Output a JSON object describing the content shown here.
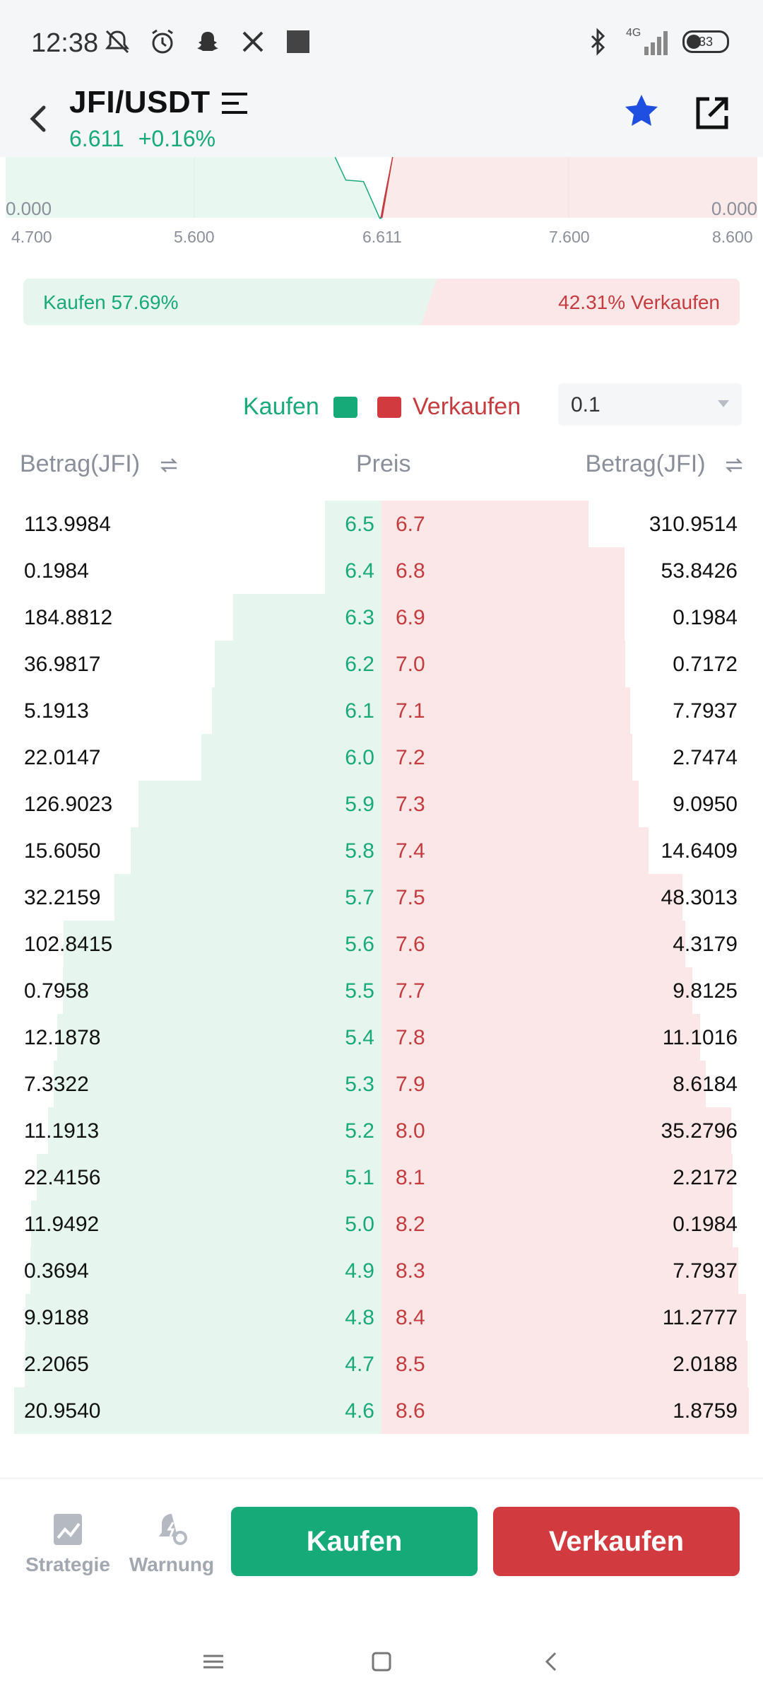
{
  "status": {
    "time": "12:38",
    "network": "4G",
    "battery": "33"
  },
  "header": {
    "pair": "JFI/USDT",
    "price": "6.611",
    "change": "+0.16%"
  },
  "depth": {
    "zero_left": "0.000",
    "zero_right": "0.000",
    "ticks": [
      "4.700",
      "5.600",
      "6.611",
      "7.600",
      "8.600"
    ]
  },
  "ratio": {
    "buy_label": "Kaufen 57.69%",
    "sell_label": "42.31% Verkaufen",
    "buy_fraction": 0.5769
  },
  "legend": {
    "buy": "Kaufen",
    "sell": "Verkaufen",
    "buy_color": "#1aa97a",
    "sell_color": "#c53c40",
    "precision": "0.1"
  },
  "columns": {
    "buy_amount": "Betrag(JFI)",
    "price": "Preis",
    "sell_amount": "Betrag(JFI)"
  },
  "orderbook": {
    "rows": [
      {
        "buy_amt": "113.9984",
        "buy_price": "6.5",
        "sell_price": "6.7",
        "sell_amt": "310.9514",
        "buy_depth": 0.0333,
        "sell_depth": 0.0755
      },
      {
        "buy_amt": "0.1984",
        "buy_price": "6.4",
        "sell_price": "6.8",
        "sell_amt": "53.8426",
        "buy_depth": 0.0334,
        "sell_depth": 0.0886
      },
      {
        "buy_amt": "184.8812",
        "buy_price": "6.3",
        "sell_price": "6.9",
        "sell_amt": "0.1984",
        "buy_depth": 0.0873,
        "sell_depth": 0.0886
      },
      {
        "buy_amt": "36.9817",
        "buy_price": "6.2",
        "sell_price": "7.0",
        "sell_amt": "0.7172",
        "buy_depth": 0.0981,
        "sell_depth": 0.0888
      },
      {
        "buy_amt": "5.1913",
        "buy_price": "6.1",
        "sell_price": "7.1",
        "sell_amt": "7.7937",
        "buy_depth": 0.0996,
        "sell_depth": 0.0907
      },
      {
        "buy_amt": "22.0147",
        "buy_price": "6.0",
        "sell_price": "7.2",
        "sell_amt": "2.7474",
        "buy_depth": 0.106,
        "sell_depth": 0.0914
      },
      {
        "buy_amt": "126.9023",
        "buy_price": "5.9",
        "sell_price": "7.3",
        "sell_amt": "9.0950",
        "buy_depth": 0.1431,
        "sell_depth": 0.0937
      },
      {
        "buy_amt": "15.6050",
        "buy_price": "5.8",
        "sell_price": "7.4",
        "sell_amt": "14.6409",
        "buy_depth": 0.1476,
        "sell_depth": 0.0975
      },
      {
        "buy_amt": "32.2159",
        "buy_price": "5.7",
        "sell_price": "7.5",
        "sell_amt": "48.3013",
        "buy_depth": 0.1571,
        "sell_depth": 0.1098
      },
      {
        "buy_amt": "102.8415",
        "buy_price": "5.6",
        "sell_price": "7.6",
        "sell_amt": "4.3179",
        "buy_depth": 0.1871,
        "sell_depth": 0.1109
      },
      {
        "buy_amt": "0.7958",
        "buy_price": "5.5",
        "sell_price": "7.7",
        "sell_amt": "9.8125",
        "buy_depth": 0.1874,
        "sell_depth": 0.1134
      },
      {
        "buy_amt": "12.1878",
        "buy_price": "5.4",
        "sell_price": "7.8",
        "sell_amt": "11.1016",
        "buy_depth": 0.1909,
        "sell_depth": 0.1162
      },
      {
        "buy_amt": "7.3322",
        "buy_price": "5.3",
        "sell_price": "7.9",
        "sell_amt": "8.6184",
        "buy_depth": 0.1931,
        "sell_depth": 0.1184
      },
      {
        "buy_amt": "11.1913",
        "buy_price": "5.2",
        "sell_price": "8.0",
        "sell_amt": "35.2796",
        "buy_depth": 0.1963,
        "sell_depth": 0.1275
      },
      {
        "buy_amt": "22.4156",
        "buy_price": "5.1",
        "sell_price": "8.1",
        "sell_amt": "2.2172",
        "buy_depth": 0.2029,
        "sell_depth": 0.128
      },
      {
        "buy_amt": "11.9492",
        "buy_price": "5.0",
        "sell_price": "8.2",
        "sell_amt": "0.1984",
        "buy_depth": 0.2064,
        "sell_depth": 0.1281
      },
      {
        "buy_amt": "0.3694",
        "buy_price": "4.9",
        "sell_price": "8.3",
        "sell_amt": "7.7937",
        "buy_depth": 0.2065,
        "sell_depth": 0.1301
      },
      {
        "buy_amt": "9.9188",
        "buy_price": "4.8",
        "sell_price": "8.4",
        "sell_amt": "11.2777",
        "buy_depth": 0.2094,
        "sell_depth": 0.133
      },
      {
        "buy_amt": "2.2065",
        "buy_price": "4.7",
        "sell_price": "8.5",
        "sell_amt": "2.0188",
        "buy_depth": 0.21,
        "sell_depth": 0.1335
      },
      {
        "buy_amt": "20.9540",
        "buy_price": "4.6",
        "sell_price": "8.6",
        "sell_amt": "1.8759",
        "buy_depth": 0.2162,
        "sell_depth": 0.134
      }
    ]
  },
  "toolbar": {
    "strategy": "Strategie",
    "alert": "Warnung",
    "buy": "Kaufen",
    "sell": "Verkaufen"
  }
}
